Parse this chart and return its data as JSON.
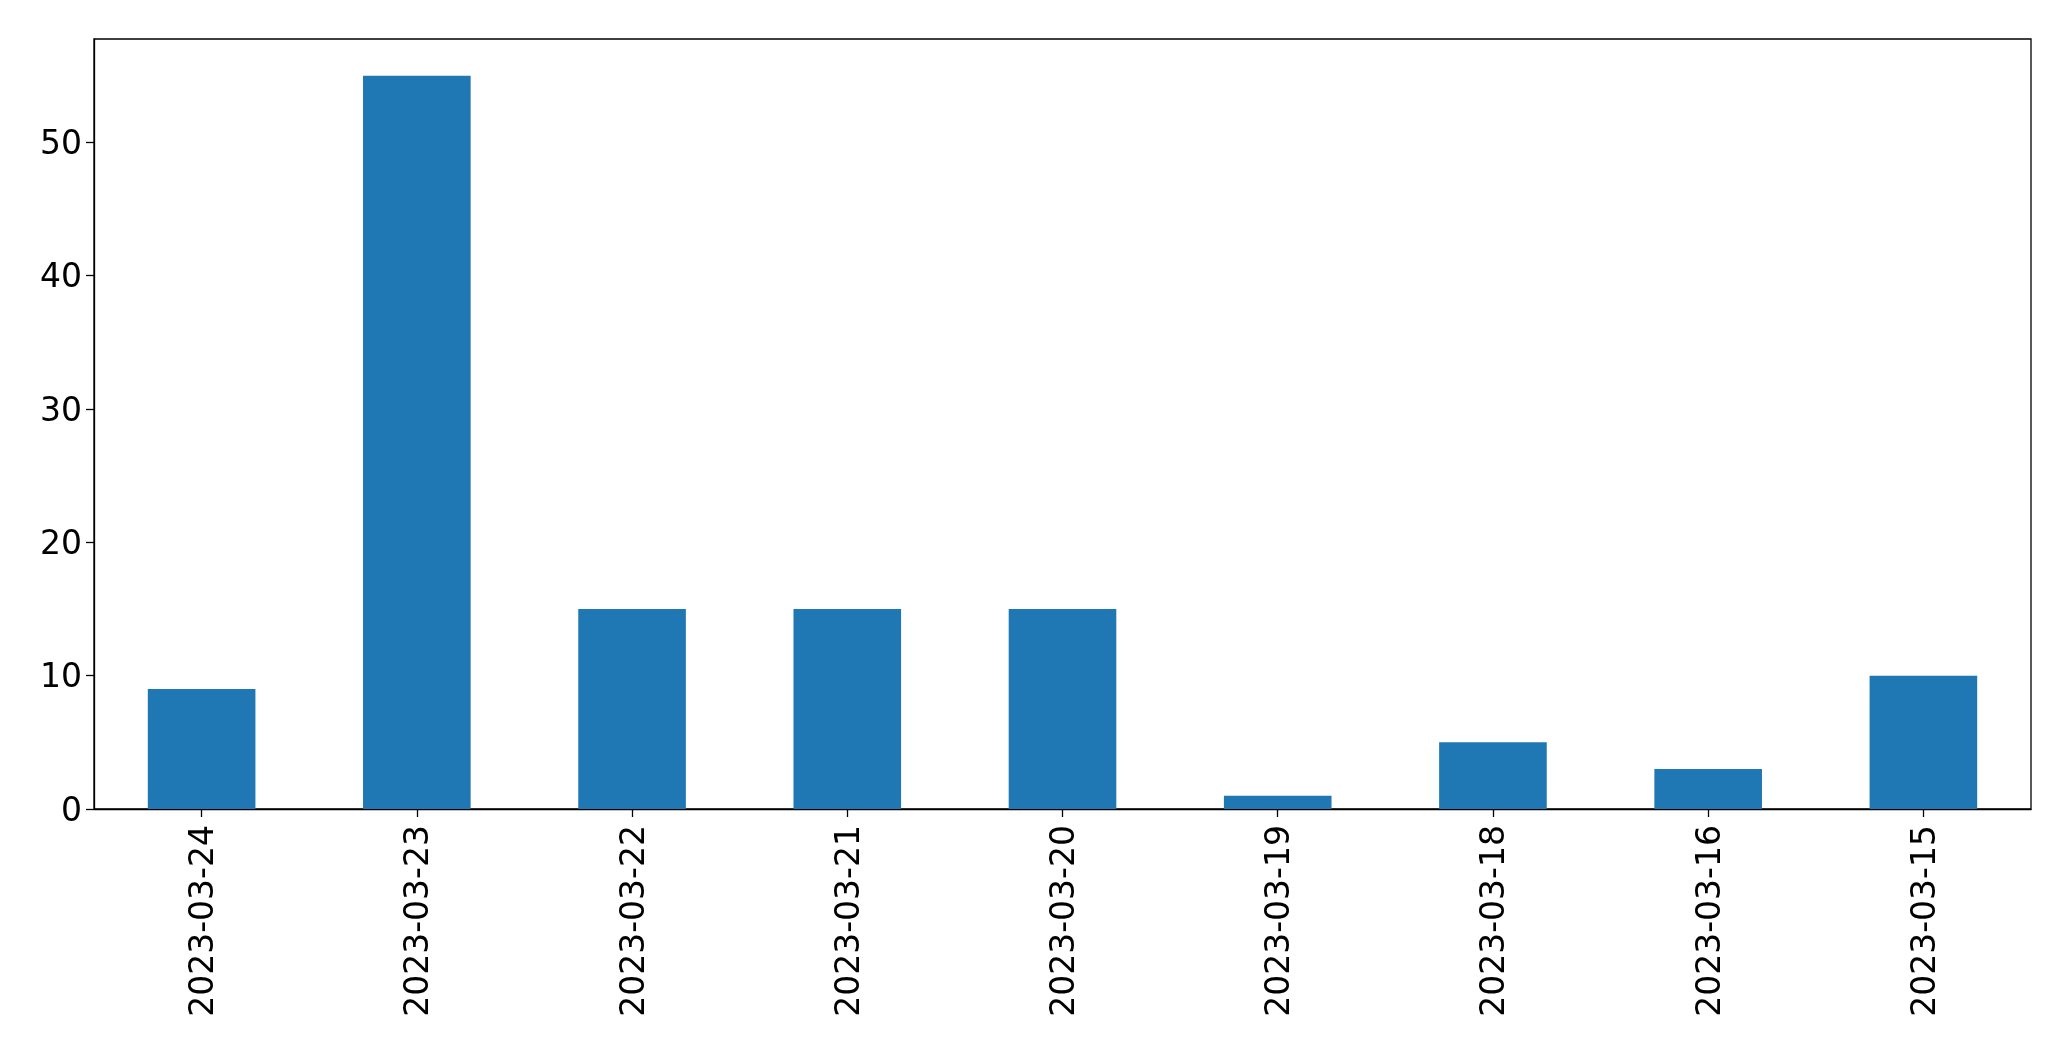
{
  "chart_data": {
    "type": "bar",
    "categories": [
      "2023-03-24",
      "2023-03-23",
      "2023-03-22",
      "2023-03-21",
      "2023-03-20",
      "2023-03-19",
      "2023-03-18",
      "2023-03-16",
      "2023-03-15"
    ],
    "values": [
      9,
      55,
      15,
      15,
      15,
      1,
      5,
      3,
      10
    ],
    "color": "#1f77b4",
    "ylim": [
      0,
      57.75
    ],
    "yticks": [
      0,
      10,
      20,
      30,
      40,
      50
    ]
  }
}
